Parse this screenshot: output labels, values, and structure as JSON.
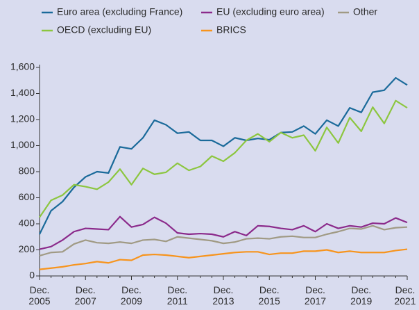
{
  "chart_data": {
    "type": "line",
    "categories": [
      "Dec. 2005",
      null,
      null,
      null,
      "Dec. 2007",
      null,
      null,
      null,
      "Dec. 2009",
      null,
      null,
      null,
      "Dec. 2011",
      null,
      null,
      null,
      "Dec. 2013",
      null,
      null,
      null,
      "Dec. 2015",
      null,
      null,
      null,
      "Dec. 2017",
      null,
      null,
      null,
      "Dec. 2019",
      null,
      null,
      null,
      "Dec. 2021"
    ],
    "series": [
      {
        "name": "Euro area (excluding France)",
        "color": "#1a6a9a",
        "values": [
          320,
          500,
          570,
          680,
          760,
          800,
          790,
          990,
          975,
          1060,
          1195,
          1160,
          1095,
          1105,
          1040,
          1040,
          995,
          1060,
          1040,
          1055,
          1045,
          1100,
          1105,
          1150,
          1090,
          1195,
          1150,
          1290,
          1255,
          1410,
          1425,
          1520,
          1465
        ]
      },
      {
        "name": "EU (excluding euro area)",
        "color": "#8b2a8b",
        "values": [
          205,
          225,
          275,
          340,
          365,
          360,
          355,
          455,
          375,
          395,
          450,
          405,
          330,
          320,
          325,
          320,
          300,
          340,
          310,
          385,
          380,
          365,
          355,
          385,
          340,
          400,
          365,
          385,
          375,
          405,
          400,
          445,
          410
        ]
      },
      {
        "name": "Other",
        "color": "#a09a84",
        "values": [
          155,
          180,
          185,
          245,
          275,
          255,
          250,
          260,
          250,
          275,
          280,
          265,
          300,
          290,
          280,
          270,
          250,
          260,
          285,
          290,
          285,
          300,
          305,
          295,
          295,
          320,
          340,
          365,
          360,
          385,
          355,
          370,
          375
        ]
      },
      {
        "name": "OECD (excluding EU)",
        "color": "#8cc63f",
        "values": [
          450,
          580,
          620,
          700,
          685,
          665,
          720,
          820,
          700,
          825,
          780,
          795,
          865,
          810,
          840,
          920,
          880,
          945,
          1040,
          1090,
          1030,
          1100,
          1060,
          1080,
          960,
          1140,
          1020,
          1215,
          1110,
          1295,
          1170,
          1345,
          1290
        ]
      },
      {
        "name": "BRICS",
        "color": "#f7941d",
        "values": [
          50,
          60,
          70,
          85,
          95,
          110,
          100,
          125,
          120,
          160,
          165,
          160,
          150,
          140,
          150,
          160,
          170,
          180,
          185,
          185,
          165,
          175,
          175,
          190,
          190,
          200,
          180,
          190,
          180,
          180,
          180,
          195,
          205
        ]
      }
    ],
    "ylim": [
      0,
      1600
    ],
    "yticks": [
      0,
      200,
      400,
      600,
      800,
      {
        "value": 1000,
        "label": "1,000"
      },
      {
        "value": 1200,
        "label": "1,200"
      },
      {
        "value": 1400,
        "label": "1,400"
      },
      {
        "value": 1600,
        "label": "1,600"
      }
    ]
  }
}
